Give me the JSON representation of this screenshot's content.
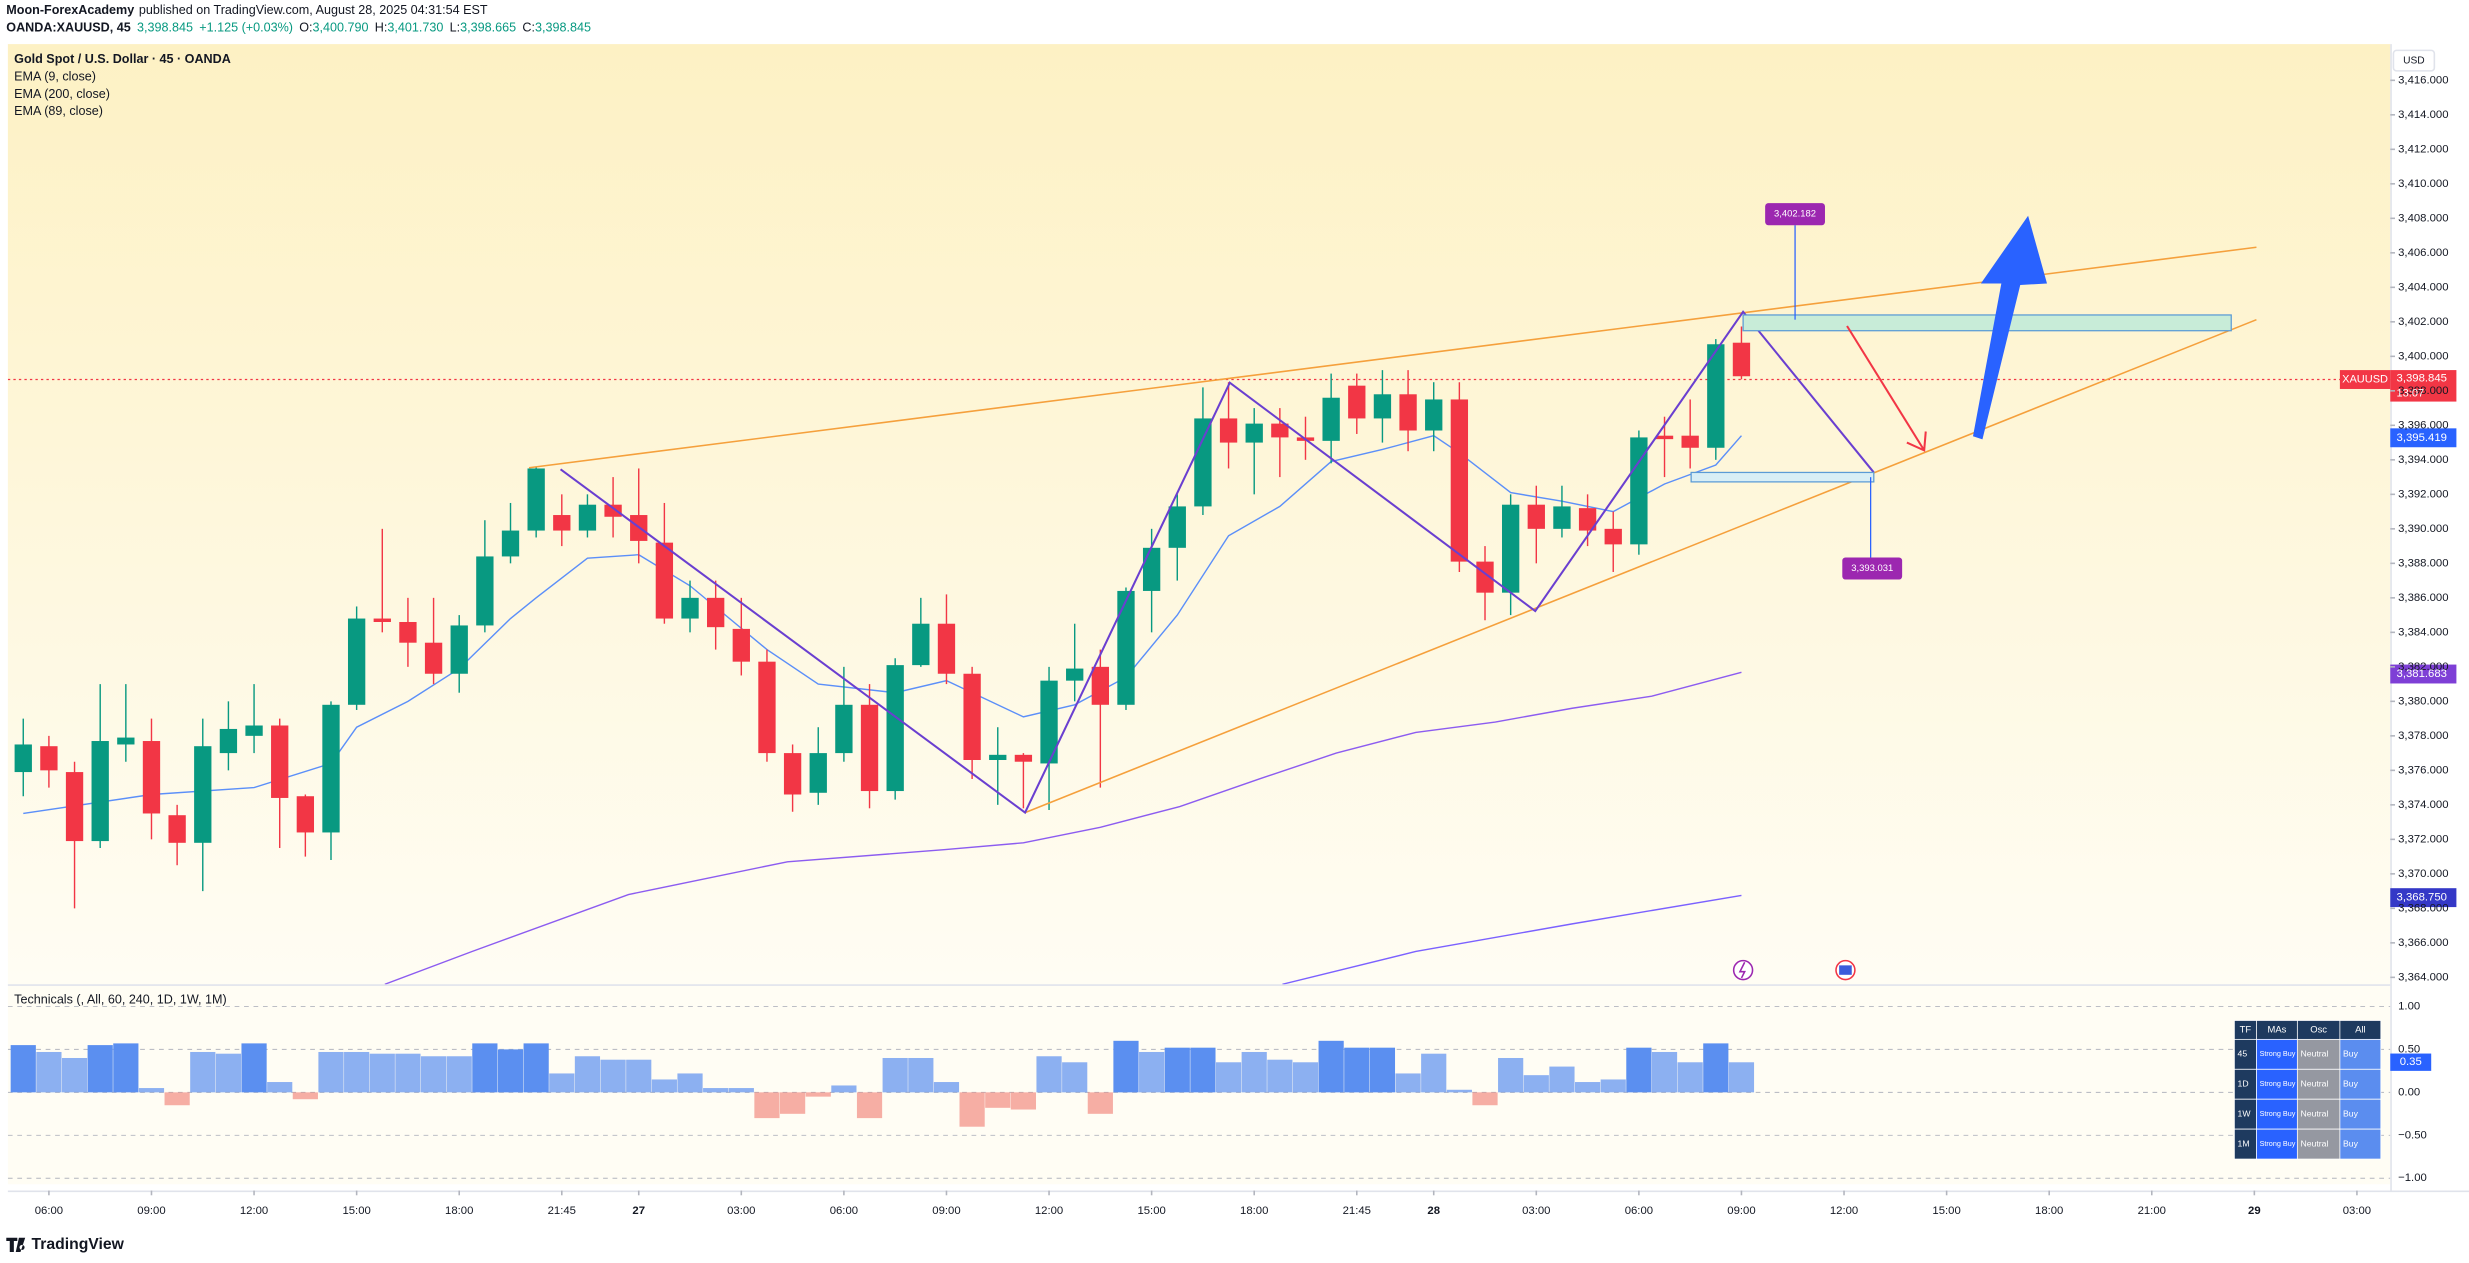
{
  "header": {
    "author": "Moon-ForexAcademy",
    "published": "published on TradingView.com, August 28, 2025 04:31:54 EST",
    "symbol": "OANDA:XAUUSD, 45",
    "last": "3,398.845",
    "change": "+1.125 (+0.03%)",
    "ohlc": [
      {
        "k": "O:",
        "v": "3,400.790"
      },
      {
        "k": "H:",
        "v": "3,401.730"
      },
      {
        "k": "L:",
        "v": "3,398.665"
      },
      {
        "k": "C:",
        "v": "3,398.845"
      }
    ]
  },
  "currency": "USD",
  "price_label": {
    "symbol": "XAUUSD",
    "price": "3,398.845",
    "countdown": "13:07"
  },
  "ema_labels": [
    "3,395.419",
    "3,381.683",
    "3,368.750"
  ],
  "callouts": [
    "3,402.182",
    "3,393.031"
  ],
  "table": {
    "header": [
      "TF",
      "MAs",
      "Osc",
      "All"
    ],
    "rows": [
      [
        "45",
        "Strong Buy",
        "Neutral",
        "Buy"
      ],
      [
        "1D",
        "Strong Buy",
        "Neutral",
        "Buy"
      ],
      [
        "1W",
        "Strong Buy",
        "Neutral",
        "Buy"
      ],
      [
        "1M",
        "Strong Buy",
        "Neutral",
        "Buy"
      ]
    ]
  },
  "footer": "TradingView",
  "chart_data": [
    {
      "type": "candlestick",
      "title": "Gold Spot / U.S. Dollar · 45 · OANDA",
      "up_color": "#089981",
      "down_color": "#f23645",
      "x": [
        0,
        1,
        2,
        3,
        4,
        5,
        6,
        7,
        8,
        9,
        10,
        11,
        12,
        13,
        14,
        15,
        16,
        17,
        18,
        19,
        20,
        21,
        22,
        23,
        24,
        25,
        26,
        27,
        28,
        29,
        30,
        31,
        32,
        33,
        34,
        35,
        36,
        37,
        38,
        39,
        40,
        41,
        42,
        43,
        44,
        45,
        46,
        47,
        48,
        49,
        50,
        51,
        52,
        53,
        54,
        55,
        56,
        57,
        58,
        59,
        60,
        61,
        62,
        63,
        64,
        65,
        66,
        67
      ],
      "open": [
        3375.9,
        3377.4,
        3375.9,
        3371.9,
        3377.5,
        3377.7,
        3373.4,
        3371.8,
        3377,
        3378,
        3378.6,
        3374.5,
        3372.4,
        3379.8,
        3384.8,
        3384.6,
        3383.4,
        3381.6,
        3384.4,
        3388.4,
        3389.9,
        3390.8,
        3389.9,
        3391.4,
        3390.8,
        3389.2,
        3384.8,
        3386,
        3384.2,
        3382.3,
        3377,
        3374.7,
        3377,
        3379.8,
        3374.8,
        3382.1,
        3384.5,
        3381.6,
        3376.6,
        3376.9,
        3376.4,
        3381.2,
        3382,
        3379.8,
        3386.4,
        3388.9,
        3391.3,
        3396.4,
        3395,
        3396.1,
        3395.3,
        3395.1,
        3398.3,
        3396.4,
        3397.8,
        3395.7,
        3397.5,
        3388.1,
        3386.3,
        3391.4,
        3390,
        3391.2,
        3390,
        3389.1,
        3395.4,
        3395.4,
        3394.7,
        3400.79
      ],
      "high": [
        3379,
        3378,
        3376.5,
        3381,
        3381,
        3379,
        3374,
        3379,
        3380,
        3381,
        3379,
        3374.6,
        3380,
        3385.5,
        3390,
        3386,
        3386,
        3385,
        3390.5,
        3391.5,
        3393.6,
        3392,
        3392,
        3393,
        3393.5,
        3391.5,
        3387,
        3387,
        3386,
        3383,
        3377.5,
        3378.5,
        3382,
        3381,
        3382.5,
        3386,
        3386.2,
        3382,
        3378.5,
        3377,
        3382,
        3384.5,
        3383,
        3386.6,
        3390,
        3392,
        3398.2,
        3398.5,
        3397,
        3397,
        3396.5,
        3399,
        3399,
        3399.2,
        3399.2,
        3398.5,
        3398.5,
        3389,
        3392,
        3392.5,
        3392.5,
        3392,
        3391,
        3395.7,
        3396.5,
        3397.5,
        3401,
        3401.73
      ],
      "low": [
        3374.5,
        3375,
        3368,
        3371.5,
        3376.5,
        3372,
        3370.5,
        3369,
        3376,
        3377,
        3371.5,
        3371,
        3370.8,
        3379.5,
        3384,
        3382,
        3381,
        3380.5,
        3384,
        3388,
        3389.5,
        3389,
        3389.5,
        3389.5,
        3388,
        3384.5,
        3384,
        3383,
        3381.5,
        3376.5,
        3373.6,
        3374,
        3376.5,
        3373.8,
        3374.3,
        3382,
        3381,
        3375.5,
        3374,
        3373.8,
        3373.7,
        3380,
        3375,
        3379.5,
        3384,
        3387,
        3390.8,
        3393.5,
        3392,
        3393,
        3394,
        3393.8,
        3395.5,
        3395,
        3394.5,
        3394.5,
        3387.5,
        3384.7,
        3385,
        3388,
        3389.5,
        3389,
        3387.5,
        3388.5,
        3393,
        3393.5,
        3394,
        3398.665
      ],
      "close": [
        3377.5,
        3376,
        3371.9,
        3377.7,
        3377.9,
        3373.5,
        3371.8,
        3377.4,
        3378.4,
        3378.6,
        3374.4,
        3372.4,
        3379.8,
        3384.8,
        3384.6,
        3383.4,
        3381.6,
        3384.4,
        3388.4,
        3389.9,
        3393.5,
        3389.9,
        3391.4,
        3390.7,
        3389.3,
        3384.8,
        3386,
        3384.3,
        3382.3,
        3377,
        3374.6,
        3377,
        3379.8,
        3374.8,
        3382.1,
        3384.5,
        3381.6,
        3376.6,
        3376.9,
        3376.5,
        3381.2,
        3381.9,
        3379.8,
        3386.4,
        3388.9,
        3391.3,
        3396.4,
        3395,
        3396.1,
        3395.3,
        3395.1,
        3397.6,
        3396.4,
        3397.8,
        3395.7,
        3397.5,
        3388.1,
        3386.3,
        3391.4,
        3390,
        3391.3,
        3389.9,
        3389.1,
        3395.3,
        3395.2,
        3394.7,
        3400.7,
        3398.845
      ],
      "overlays": [
        {
          "name": "EMA (9, close)",
          "color": "#5b8ff9",
          "x": [
            0,
            5,
            9,
            12,
            13,
            15,
            17,
            19,
            20,
            22,
            24,
            26,
            29,
            31,
            34,
            36,
            39,
            41,
            43,
            45,
            47,
            49,
            51,
            53,
            55,
            56,
            58,
            60,
            62,
            64,
            66,
            67
          ],
          "values": [
            3373.5,
            3374.6,
            3375,
            3376.4,
            3378.5,
            3380,
            3381.9,
            3384.8,
            3386,
            3388.3,
            3388.5,
            3386.7,
            3383,
            3381,
            3380.5,
            3381.2,
            3379.1,
            3379.8,
            3381.4,
            3385,
            3389.6,
            3391.3,
            3393.9,
            3394.6,
            3395.4,
            3394.4,
            3392.1,
            3391.6,
            3391,
            3392.6,
            3393.7,
            3395.4
          ]
        },
        {
          "name": "EMA (200, close)",
          "color": "#7b61ff",
          "x": [
            49.1,
            54.3,
            60.4,
            67
          ],
          "values": [
            3363.6,
            3365.5,
            3367.1,
            3368.75
          ]
        },
        {
          "name": "EMA (89, close)",
          "color": "#8c5cf0",
          "x": [
            14.1,
            17.5,
            23.6,
            29.8,
            35.9,
            39,
            42,
            45.1,
            48.2,
            51.2,
            54.3,
            57.4,
            60.4,
            63.5,
            67
          ],
          "values": [
            3363.6,
            3365.5,
            3368.8,
            3370.7,
            3371.4,
            3371.8,
            3372.7,
            3373.9,
            3375.5,
            3377,
            3378.2,
            3378.8,
            3379.6,
            3380.3,
            3381.68
          ]
        }
      ],
      "xlim": [
        -0.6,
        92.3
      ],
      "xticks": [
        {
          "value": 1,
          "label": "06:00"
        },
        {
          "value": 5,
          "label": "09:00"
        },
        {
          "value": 9,
          "label": "12:00"
        },
        {
          "value": 13,
          "label": "15:00"
        },
        {
          "value": 17,
          "label": "18:00"
        },
        {
          "value": 21,
          "label": "21:45"
        },
        {
          "value": 24,
          "label": "27"
        },
        {
          "value": 28,
          "label": "03:00"
        },
        {
          "value": 32,
          "label": "06:00"
        },
        {
          "value": 36,
          "label": "09:00"
        },
        {
          "value": 40,
          "label": "12:00"
        },
        {
          "value": 44,
          "label": "15:00"
        },
        {
          "value": 48,
          "label": "18:00"
        },
        {
          "value": 52,
          "label": "21:45"
        },
        {
          "value": 55,
          "label": "28"
        },
        {
          "value": 59,
          "label": "03:00"
        },
        {
          "value": 63,
          "label": "06:00"
        },
        {
          "value": 67,
          "label": "09:00"
        },
        {
          "value": 71,
          "label": "12:00"
        },
        {
          "value": 75,
          "label": "15:00"
        },
        {
          "value": 79,
          "label": "18:00"
        },
        {
          "value": 83,
          "label": "21:00"
        },
        {
          "value": 87,
          "label": "29"
        },
        {
          "value": 91,
          "label": "03:00"
        }
      ],
      "ylim": [
        3363.6,
        3418.1
      ],
      "yticks": [
        {
          "value": 3364,
          "label": "3,364.000"
        },
        {
          "value": 3366,
          "label": "3,366.000"
        },
        {
          "value": 3368,
          "label": "3,368.000"
        },
        {
          "value": 3370,
          "label": "3,370.000"
        },
        {
          "value": 3372,
          "label": "3,372.000"
        },
        {
          "value": 3374,
          "label": "3,374.000"
        },
        {
          "value": 3376,
          "label": "3,376.000"
        },
        {
          "value": 3378,
          "label": "3,378.000"
        },
        {
          "value": 3380,
          "label": "3,380.000"
        },
        {
          "value": 3382,
          "label": "3,382.000"
        },
        {
          "value": 3384,
          "label": "3,384.000"
        },
        {
          "value": 3386,
          "label": "3,386.000"
        },
        {
          "value": 3388,
          "label": "3,388.000"
        },
        {
          "value": 3390,
          "label": "3,390.000"
        },
        {
          "value": 3392,
          "label": "3,392.000"
        },
        {
          "value": 3394,
          "label": "3,394.000"
        },
        {
          "value": 3396,
          "label": "3,396.000"
        },
        {
          "value": 3398,
          "label": "3,398.000"
        },
        {
          "value": 3400,
          "label": "3,400.000"
        },
        {
          "value": 3402,
          "label": "3,402.000"
        },
        {
          "value": 3404,
          "label": "3,404.000"
        },
        {
          "value": 3406,
          "label": "3,406.000"
        },
        {
          "value": 3408,
          "label": "3,408.000"
        },
        {
          "value": 3410,
          "label": "3,410.000"
        },
        {
          "value": 3412,
          "label": "3,412.000"
        },
        {
          "value": 3414,
          "label": "3,414.000"
        },
        {
          "value": 3416,
          "label": "3,416.000"
        }
      ]
    },
    {
      "type": "bar",
      "title": "Technicals (, All, 60, 240, 1D, 1W, 1M)",
      "color_up": "#5b8ff0",
      "color_down": "#f28b82",
      "last_label": "0.35",
      "x": [
        0,
        1,
        2,
        3,
        4,
        5,
        6,
        7,
        8,
        9,
        10,
        11,
        12,
        13,
        14,
        15,
        16,
        17,
        18,
        19,
        20,
        21,
        22,
        23,
        24,
        25,
        26,
        27,
        28,
        29,
        30,
        31,
        32,
        33,
        34,
        35,
        36,
        37,
        38,
        39,
        40,
        41,
        42,
        43,
        44,
        45,
        46,
        47,
        48,
        49,
        50,
        51,
        52,
        53,
        54,
        55,
        56,
        57,
        58,
        59,
        60,
        61,
        62,
        63,
        64,
        65,
        66,
        67
      ],
      "values": [
        0.55,
        0.47,
        0.4,
        0.55,
        0.57,
        0.05,
        -0.15,
        0.47,
        0.45,
        0.57,
        0.12,
        -0.08,
        0.47,
        0.47,
        0.45,
        0.45,
        0.42,
        0.42,
        0.57,
        0.5,
        0.57,
        0.22,
        0.42,
        0.38,
        0.38,
        0.15,
        0.22,
        0.05,
        0.05,
        -0.3,
        -0.25,
        -0.05,
        0.08,
        -0.3,
        0.4,
        0.4,
        0.12,
        -0.4,
        -0.18,
        -0.2,
        0.42,
        0.35,
        -0.25,
        0.6,
        0.47,
        0.52,
        0.52,
        0.35,
        0.47,
        0.38,
        0.35,
        0.6,
        0.52,
        0.52,
        0.22,
        0.45,
        0.03,
        -0.15,
        0.4,
        0.2,
        0.3,
        0.12,
        0.15,
        0.52,
        0.47,
        0.35,
        0.57,
        0.35
      ],
      "ylim": [
        -1.07,
        1.24
      ],
      "yticks": [
        {
          "value": 1,
          "label": "1.00"
        },
        {
          "value": 0.5,
          "label": "0.50"
        },
        {
          "value": 0,
          "label": "0.00"
        },
        {
          "value": -0.5,
          "label": "−0.50"
        },
        {
          "value": -1,
          "label": "−1.00"
        }
      ]
    }
  ]
}
